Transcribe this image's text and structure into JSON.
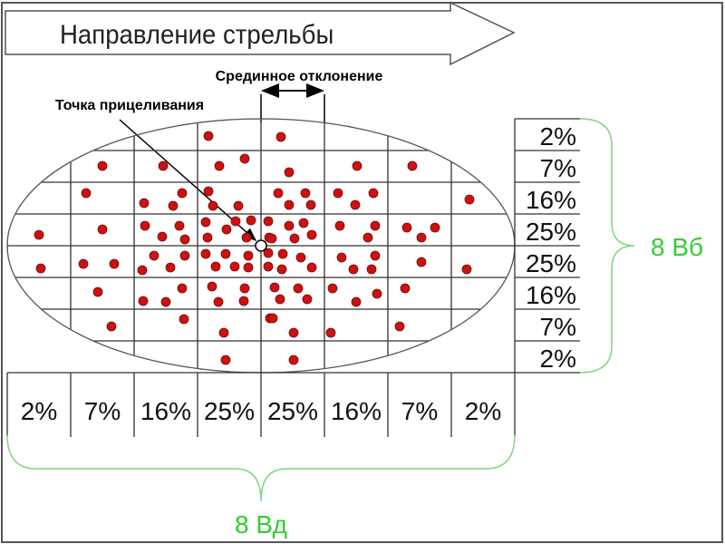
{
  "title": "Направление стрельбы",
  "labels": {
    "median_deviation": "Срединное отклонение",
    "aim_point": "Точка прицеливания",
    "vertical_span": "8 Вб",
    "horizontal_span": "8 Вд"
  },
  "row_percentages": [
    "2%",
    "7%",
    "16%",
    "25%",
    "25%",
    "16%",
    "7%",
    "2%"
  ],
  "column_percentages": [
    "2%",
    "7%",
    "16%",
    "25%",
    "25%",
    "16%",
    "7%",
    "2%"
  ],
  "colors": {
    "dot": "#cc1111",
    "grid": "#333333",
    "brace": "#7fd67f",
    "brace_label": "#33cc33"
  }
}
